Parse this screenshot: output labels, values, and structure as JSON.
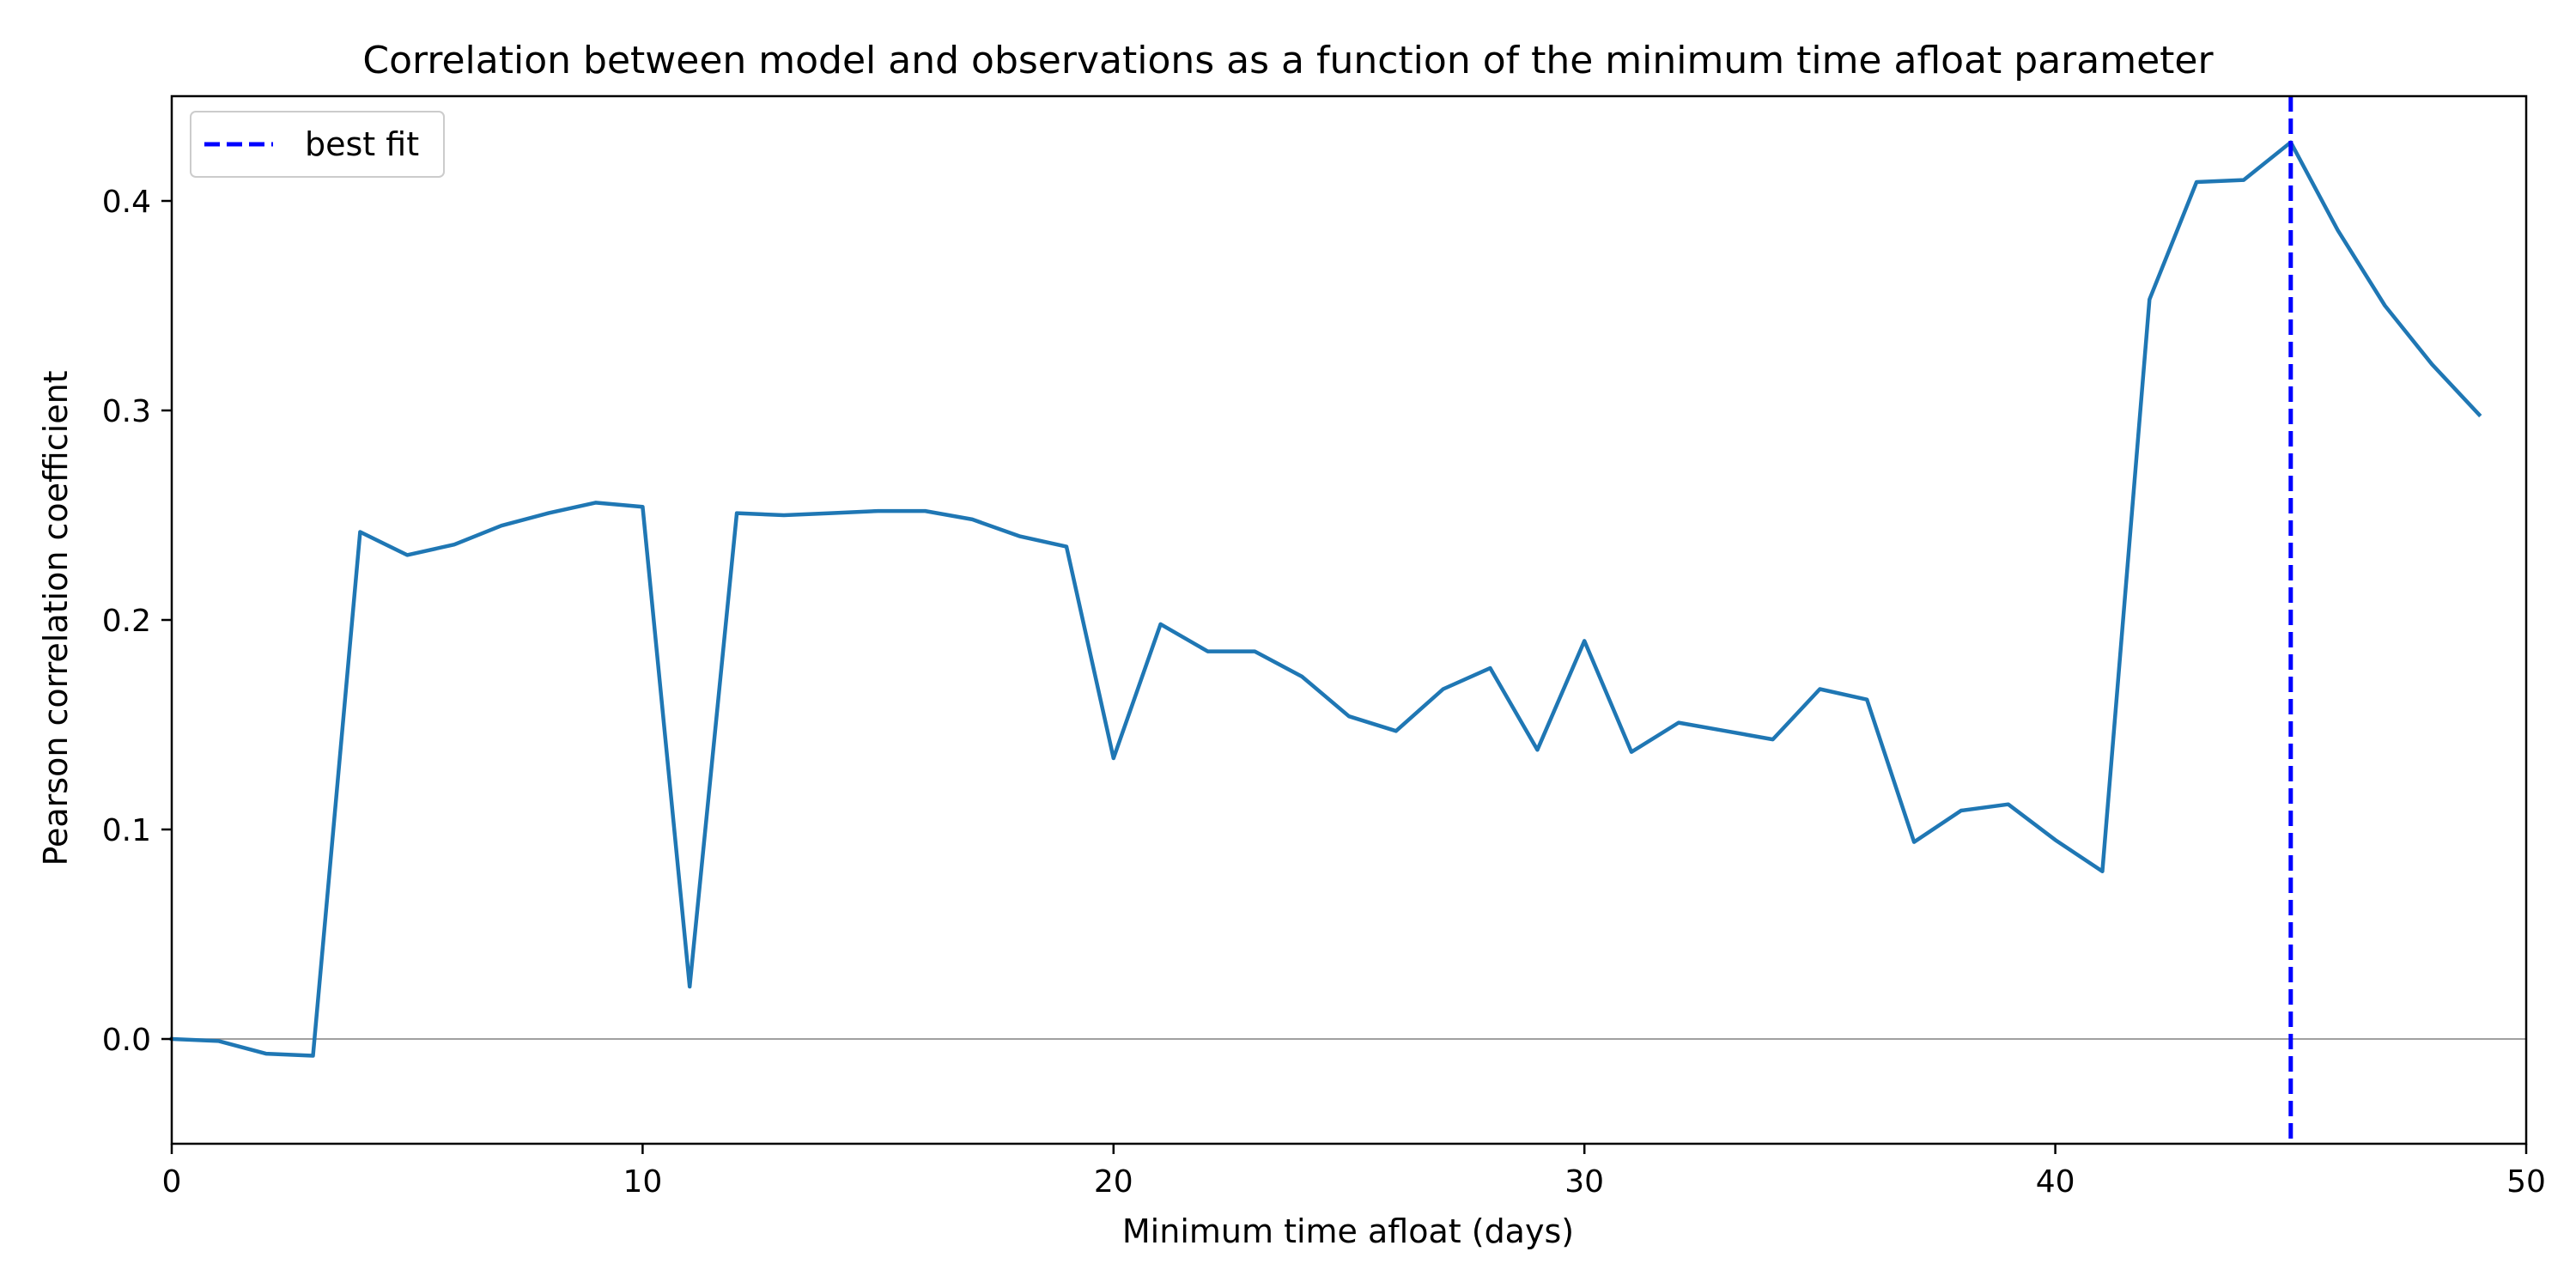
{
  "chart_data": {
    "type": "line",
    "title": "Correlation between model and observations as a function of the minimum time afloat parameter",
    "xlabel": "Minimum time afloat (days)",
    "ylabel": "Pearson correlation coefficient",
    "xlim": [
      0,
      50
    ],
    "ylim": [
      -0.05,
      0.45
    ],
    "xticks": [
      0,
      10,
      20,
      30,
      40,
      50
    ],
    "yticks": [
      0.0,
      0.1,
      0.2,
      0.3,
      0.4
    ],
    "xtick_labels": [
      "0",
      "10",
      "20",
      "30",
      "40",
      "50"
    ],
    "ytick_labels": [
      "0.0",
      "0.1",
      "0.2",
      "0.3",
      "0.4"
    ],
    "grid": false,
    "zero_line": true,
    "legend": {
      "placement": "upper-left",
      "entries": [
        "best fit"
      ]
    },
    "series": [
      {
        "color": "#1f77b4",
        "x": [
          0,
          1,
          2,
          3,
          4,
          5,
          6,
          7,
          8,
          9,
          10,
          11,
          12,
          13,
          14,
          15,
          16,
          17,
          18,
          19,
          20,
          21,
          22,
          23,
          24,
          25,
          26,
          27,
          28,
          29,
          30,
          31,
          32,
          33,
          34,
          35,
          36,
          37,
          38,
          39,
          40,
          41,
          42,
          43,
          44,
          45,
          46,
          47,
          48,
          49
        ],
        "y": [
          0.0,
          -0.001,
          -0.007,
          -0.008,
          0.242,
          0.231,
          0.236,
          0.245,
          0.251,
          0.256,
          0.254,
          0.025,
          0.251,
          0.25,
          0.251,
          0.252,
          0.252,
          0.248,
          0.24,
          0.235,
          0.134,
          0.198,
          0.185,
          0.185,
          0.173,
          0.154,
          0.147,
          0.167,
          0.177,
          0.138,
          0.19,
          0.137,
          0.151,
          0.147,
          0.143,
          0.167,
          0.162,
          0.094,
          0.109,
          0.112,
          0.095,
          0.08,
          0.353,
          0.409,
          0.41,
          0.428,
          0.386,
          0.35,
          0.322,
          0.298
        ]
      }
    ],
    "vline": {
      "name": "best fit",
      "x": 45,
      "color": "#0000ff",
      "style": "dashed"
    }
  }
}
